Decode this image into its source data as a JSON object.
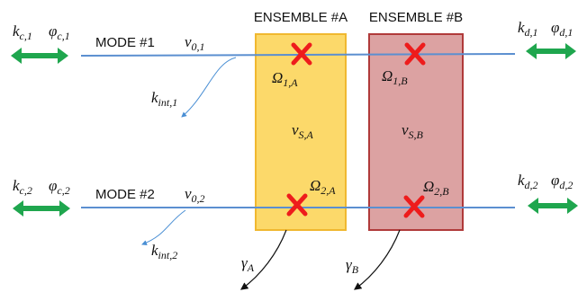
{
  "ensembles": [
    {
      "title": "ENSEMBLE #A",
      "detuning": {
        "sym": "ν",
        "sub": "S,A"
      },
      "coupling_top": {
        "sym": "Ω",
        "sub": "1,A"
      },
      "coupling_bottom": {
        "sym": "Ω",
        "sub": "2,A"
      },
      "decay": {
        "sym": "γ",
        "sub": "A"
      },
      "fill": "#fcd96a",
      "stroke": "#f0b830"
    },
    {
      "title": "ENSEMBLE #B",
      "detuning": {
        "sym": "ν",
        "sub": "S,B"
      },
      "coupling_top": {
        "sym": "Ω",
        "sub": "1,B"
      },
      "coupling_bottom": {
        "sym": "Ω",
        "sub": "2,B"
      },
      "decay": {
        "sym": "γ",
        "sub": "B"
      },
      "fill": "#dca2a2",
      "stroke": "#b03a3a"
    }
  ],
  "modes": [
    {
      "label": "MODE #1",
      "freq": {
        "sym": "ν",
        "sub": "0,1"
      },
      "k_c": {
        "sym": "k",
        "sub": "c,1"
      },
      "phi_c": {
        "sym": "φ",
        "sub": "c,1"
      },
      "k_d": {
        "sym": "k",
        "sub": "d,1"
      },
      "phi_d": {
        "sym": "φ",
        "sub": "d,1"
      },
      "k_int": {
        "sym": "k",
        "sub": "int,1"
      }
    },
    {
      "label": "MODE #2",
      "freq": {
        "sym": "ν",
        "sub": "0,2"
      },
      "k_c": {
        "sym": "k",
        "sub": "c,2"
      },
      "phi_c": {
        "sym": "φ",
        "sub": "c,2"
      },
      "k_d": {
        "sym": "k",
        "sub": "d,2"
      },
      "phi_d": {
        "sym": "φ",
        "sub": "d,2"
      },
      "k_int": {
        "sym": "k",
        "sub": "int,2"
      }
    }
  ],
  "colors": {
    "mode_line": "#5b8fd0",
    "arrow": "#1fa64e",
    "marker": "#ee1c1c",
    "loss_arrow": "#4a8fd4"
  }
}
